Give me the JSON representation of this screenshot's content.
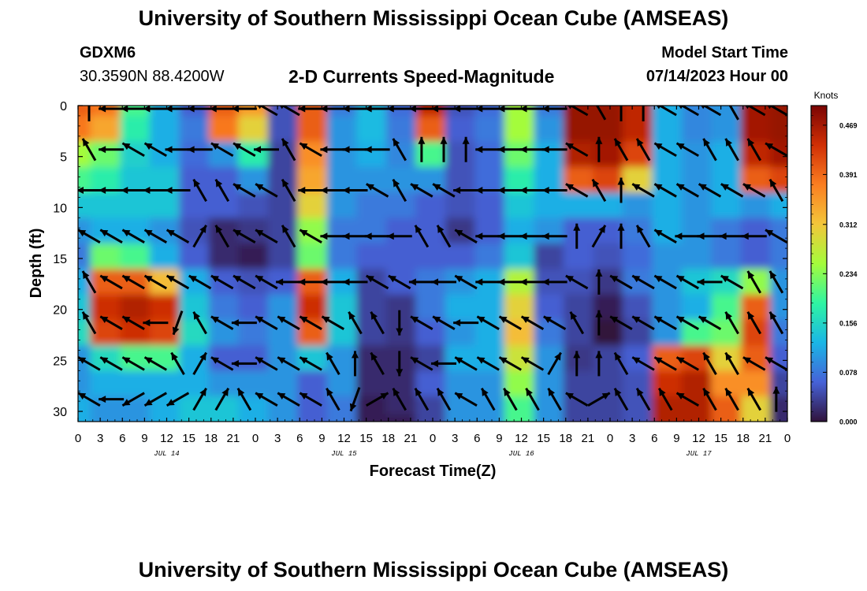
{
  "header": {
    "title": "University of Southern Mississippi Ocean Cube (AMSEAS)",
    "station": "GDXM6",
    "coordinates": "30.3590N  88.4200W",
    "plot_title": "2-D Currents Speed-Magnitude",
    "model_start_label": "Model Start Time",
    "model_start_value": "07/14/2023 Hour 00",
    "footer_title": "University of Southern Mississippi Ocean Cube (AMSEAS)"
  },
  "colors": {
    "scale": [
      "#30123b",
      "#4662d8",
      "#1ab6e6",
      "#2ff5a2",
      "#a4fc3b",
      "#f3c63a",
      "#fb7e21",
      "#d02f05",
      "#7a0403"
    ]
  },
  "chart_data": {
    "type": "heatmap",
    "title": "2-D Currents Speed-Magnitude",
    "xlabel": "Forecast Time(Z)",
    "ylabel": "Depth (ft)",
    "x_ticks": [
      "0",
      "3",
      "6",
      "9",
      "12",
      "15",
      "18",
      "21",
      "0",
      "3",
      "6",
      "9",
      "12",
      "15",
      "18",
      "21",
      "0",
      "3",
      "6",
      "9",
      "12",
      "15",
      "18",
      "21",
      "0",
      "3",
      "6",
      "9",
      "12",
      "15",
      "18",
      "21",
      "0"
    ],
    "x_hours_range": [
      0,
      96
    ],
    "date_labels": [
      {
        "label": "JUL 14",
        "hour": 12
      },
      {
        "label": "JUL 15",
        "hour": 36
      },
      {
        "label": "JUL 16",
        "hour": 60
      },
      {
        "label": "JUL 17",
        "hour": 84
      }
    ],
    "y_ticks": [
      0,
      5,
      10,
      15,
      20,
      25,
      30
    ],
    "y_range": [
      0,
      31
    ],
    "colorbar": {
      "unit": "Knots",
      "range": [
        0,
        0.5
      ],
      "tick_values": [
        0.0,
        0.078,
        0.156,
        0.234,
        0.312,
        0.391,
        0.469
      ],
      "tick_labels": [
        "0.000",
        "0.078",
        "0.156",
        "0.234",
        "0.312",
        "0.391",
        "0.469"
      ]
    },
    "depths": [
      0,
      2.5,
      5,
      7.5,
      10,
      12.5,
      15,
      17.5,
      20,
      22.5,
      25,
      27.5,
      30,
      31
    ],
    "hours": [
      0,
      4,
      8,
      12,
      16,
      20,
      24,
      28,
      32,
      36,
      40,
      44,
      48,
      52,
      56,
      60,
      64,
      68,
      72,
      76,
      80,
      84,
      88,
      92,
      96
    ],
    "speed_knots": [
      [
        0.4,
        0.38,
        0.2,
        0.12,
        0.06,
        0.4,
        0.35,
        0.05,
        0.4,
        0.08,
        0.13,
        0.07,
        0.45,
        0.05,
        0.07,
        0.25,
        0.08,
        0.48,
        0.48,
        0.45,
        0.12,
        0.09,
        0.1,
        0.47,
        0.48
      ],
      [
        0.38,
        0.34,
        0.18,
        0.12,
        0.08,
        0.38,
        0.3,
        0.05,
        0.4,
        0.1,
        0.13,
        0.08,
        0.4,
        0.06,
        0.08,
        0.25,
        0.1,
        0.48,
        0.48,
        0.45,
        0.12,
        0.09,
        0.1,
        0.47,
        0.48
      ],
      [
        0.25,
        0.22,
        0.15,
        0.12,
        0.07,
        0.1,
        0.18,
        0.04,
        0.36,
        0.1,
        0.12,
        0.09,
        0.2,
        0.05,
        0.07,
        0.22,
        0.12,
        0.46,
        0.47,
        0.42,
        0.12,
        0.1,
        0.12,
        0.45,
        0.47
      ],
      [
        0.2,
        0.18,
        0.14,
        0.14,
        0.06,
        0.06,
        0.1,
        0.04,
        0.34,
        0.1,
        0.1,
        0.1,
        0.1,
        0.05,
        0.07,
        0.18,
        0.12,
        0.4,
        0.42,
        0.3,
        0.12,
        0.1,
        0.12,
        0.4,
        0.42
      ],
      [
        0.14,
        0.14,
        0.14,
        0.14,
        0.06,
        0.06,
        0.05,
        0.04,
        0.3,
        0.1,
        0.08,
        0.08,
        0.06,
        0.05,
        0.06,
        0.14,
        0.12,
        0.12,
        0.12,
        0.1,
        0.12,
        0.1,
        0.12,
        0.1,
        0.12
      ],
      [
        0.1,
        0.12,
        0.12,
        0.1,
        0.05,
        0.02,
        0.03,
        0.04,
        0.24,
        0.08,
        0.08,
        0.06,
        0.06,
        0.03,
        0.06,
        0.12,
        0.1,
        0.06,
        0.06,
        0.08,
        0.12,
        0.1,
        0.08,
        0.06,
        0.08
      ],
      [
        0.08,
        0.22,
        0.2,
        0.12,
        0.06,
        0.02,
        0.01,
        0.04,
        0.22,
        0.08,
        0.06,
        0.06,
        0.06,
        0.06,
        0.08,
        0.14,
        0.04,
        0.06,
        0.05,
        0.07,
        0.1,
        0.1,
        0.08,
        0.06,
        0.08
      ],
      [
        0.12,
        0.4,
        0.4,
        0.32,
        0.12,
        0.06,
        0.05,
        0.06,
        0.4,
        0.12,
        0.04,
        0.06,
        0.08,
        0.1,
        0.12,
        0.26,
        0.05,
        0.05,
        0.03,
        0.08,
        0.1,
        0.14,
        0.16,
        0.24,
        0.1
      ],
      [
        0.14,
        0.44,
        0.46,
        0.44,
        0.14,
        0.08,
        0.06,
        0.1,
        0.44,
        0.14,
        0.04,
        0.03,
        0.08,
        0.12,
        0.12,
        0.3,
        0.06,
        0.04,
        0.01,
        0.05,
        0.1,
        0.12,
        0.2,
        0.4,
        0.1
      ],
      [
        0.16,
        0.42,
        0.44,
        0.42,
        0.16,
        0.1,
        0.08,
        0.1,
        0.4,
        0.14,
        0.04,
        0.03,
        0.06,
        0.1,
        0.12,
        0.32,
        0.08,
        0.04,
        0.0,
        0.04,
        0.1,
        0.2,
        0.22,
        0.42,
        0.08
      ],
      [
        0.1,
        0.16,
        0.2,
        0.2,
        0.12,
        0.06,
        0.06,
        0.1,
        0.14,
        0.1,
        0.02,
        0.02,
        0.04,
        0.12,
        0.12,
        0.28,
        0.1,
        0.03,
        0.04,
        0.06,
        0.4,
        0.42,
        0.3,
        0.4,
        0.06
      ],
      [
        0.1,
        0.12,
        0.12,
        0.12,
        0.12,
        0.1,
        0.1,
        0.1,
        0.06,
        0.1,
        0.02,
        0.02,
        0.06,
        0.1,
        0.1,
        0.24,
        0.1,
        0.04,
        0.04,
        0.05,
        0.44,
        0.46,
        0.36,
        0.36,
        0.04
      ],
      [
        0.12,
        0.1,
        0.1,
        0.12,
        0.14,
        0.14,
        0.12,
        0.1,
        0.06,
        0.08,
        0.01,
        0.02,
        0.04,
        0.1,
        0.1,
        0.2,
        0.1,
        0.04,
        0.04,
        0.05,
        0.46,
        0.46,
        0.4,
        0.3,
        0.02
      ],
      [
        0.12,
        0.1,
        0.1,
        0.12,
        0.14,
        0.14,
        0.12,
        0.1,
        0.06,
        0.08,
        0.01,
        0.01,
        0.04,
        0.1,
        0.1,
        0.2,
        0.1,
        0.04,
        0.04,
        0.05,
        0.46,
        0.46,
        0.4,
        0.3,
        0.02
      ]
    ],
    "vector_depths": [
      0,
      4,
      8,
      12.5,
      17,
      21,
      25,
      28.5
    ],
    "vector_hours": [
      0,
      3,
      6,
      9,
      12,
      15,
      18,
      21,
      24,
      27,
      30,
      33,
      36,
      39,
      42,
      45,
      48,
      51,
      54,
      57,
      60,
      63,
      66,
      69,
      72,
      75,
      78,
      81,
      84,
      87,
      90,
      93
    ],
    "vector_direction_deg": [
      [
        0,
        270,
        270,
        270,
        270,
        270,
        270,
        270,
        300,
        300,
        270,
        270,
        270,
        270,
        270,
        270,
        270,
        270,
        270,
        270,
        270,
        270,
        300,
        330,
        0,
        0,
        300,
        300,
        300,
        330,
        300,
        300
      ],
      [
        330,
        270,
        300,
        300,
        270,
        270,
        300,
        300,
        270,
        330,
        300,
        270,
        270,
        270,
        330,
        0,
        0,
        0,
        270,
        270,
        270,
        270,
        300,
        0,
        330,
        330,
        300,
        300,
        330,
        330,
        330,
        300
      ],
      [
        270,
        270,
        270,
        270,
        270,
        330,
        330,
        300,
        300,
        330,
        270,
        270,
        270,
        300,
        330,
        300,
        300,
        270,
        270,
        270,
        270,
        270,
        300,
        330,
        0,
        300,
        300,
        300,
        300,
        300,
        300,
        330
      ],
      [
        300,
        300,
        300,
        300,
        300,
        30,
        330,
        300,
        300,
        330,
        300,
        270,
        270,
        270,
        270,
        330,
        330,
        300,
        270,
        270,
        270,
        270,
        0,
        30,
        0,
        330,
        300,
        270,
        270,
        270,
        270,
        300
      ],
      [
        330,
        300,
        300,
        300,
        300,
        300,
        300,
        300,
        300,
        270,
        270,
        270,
        270,
        300,
        300,
        270,
        270,
        300,
        270,
        270,
        270,
        270,
        300,
        0,
        300,
        300,
        300,
        300,
        270,
        300,
        330,
        330
      ],
      [
        330,
        300,
        300,
        270,
        200,
        330,
        300,
        270,
        300,
        300,
        300,
        300,
        330,
        330,
        180,
        300,
        300,
        270,
        300,
        300,
        300,
        300,
        330,
        0,
        300,
        300,
        300,
        300,
        300,
        330,
        330,
        330
      ],
      [
        300,
        300,
        300,
        300,
        330,
        30,
        300,
        270,
        300,
        300,
        300,
        330,
        0,
        330,
        180,
        300,
        270,
        300,
        300,
        300,
        300,
        30,
        0,
        0,
        330,
        300,
        300,
        300,
        330,
        330,
        300,
        300
      ],
      [
        300,
        270,
        240,
        240,
        240,
        30,
        30,
        330,
        300,
        300,
        300,
        330,
        200,
        60,
        330,
        330,
        330,
        300,
        330,
        330,
        330,
        330,
        300,
        60,
        330,
        330,
        330,
        300,
        330,
        330,
        330,
        0
      ]
    ]
  }
}
